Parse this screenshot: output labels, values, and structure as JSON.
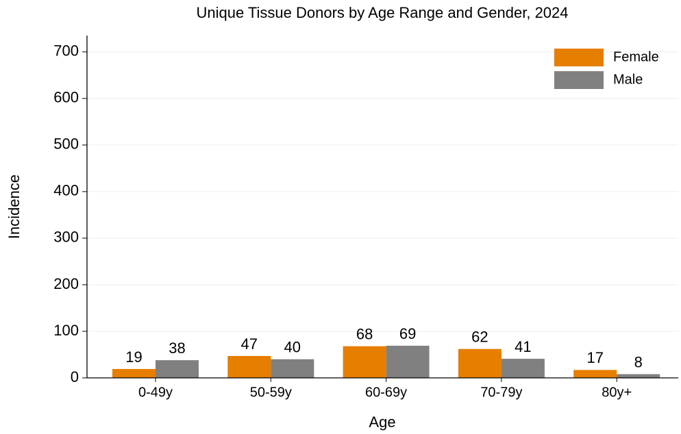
{
  "chart_data": {
    "type": "bar",
    "title": "Unique Tissue Donors by Age Range and Gender, 2024",
    "xlabel": "Age",
    "ylabel": "Incidence",
    "categories": [
      "0-49y",
      "50-59y",
      "60-69y",
      "70-79y",
      "80y+"
    ],
    "series": [
      {
        "name": "Female",
        "color": "#e67e00",
        "values": [
          19,
          47,
          68,
          62,
          17
        ]
      },
      {
        "name": "Male",
        "color": "#808080",
        "values": [
          38,
          40,
          69,
          41,
          8
        ]
      }
    ],
    "ylim": [
      0,
      735
    ],
    "yticks": [
      0,
      100,
      200,
      300,
      400,
      500,
      600,
      700
    ],
    "grid": true,
    "legend": "upper right"
  }
}
